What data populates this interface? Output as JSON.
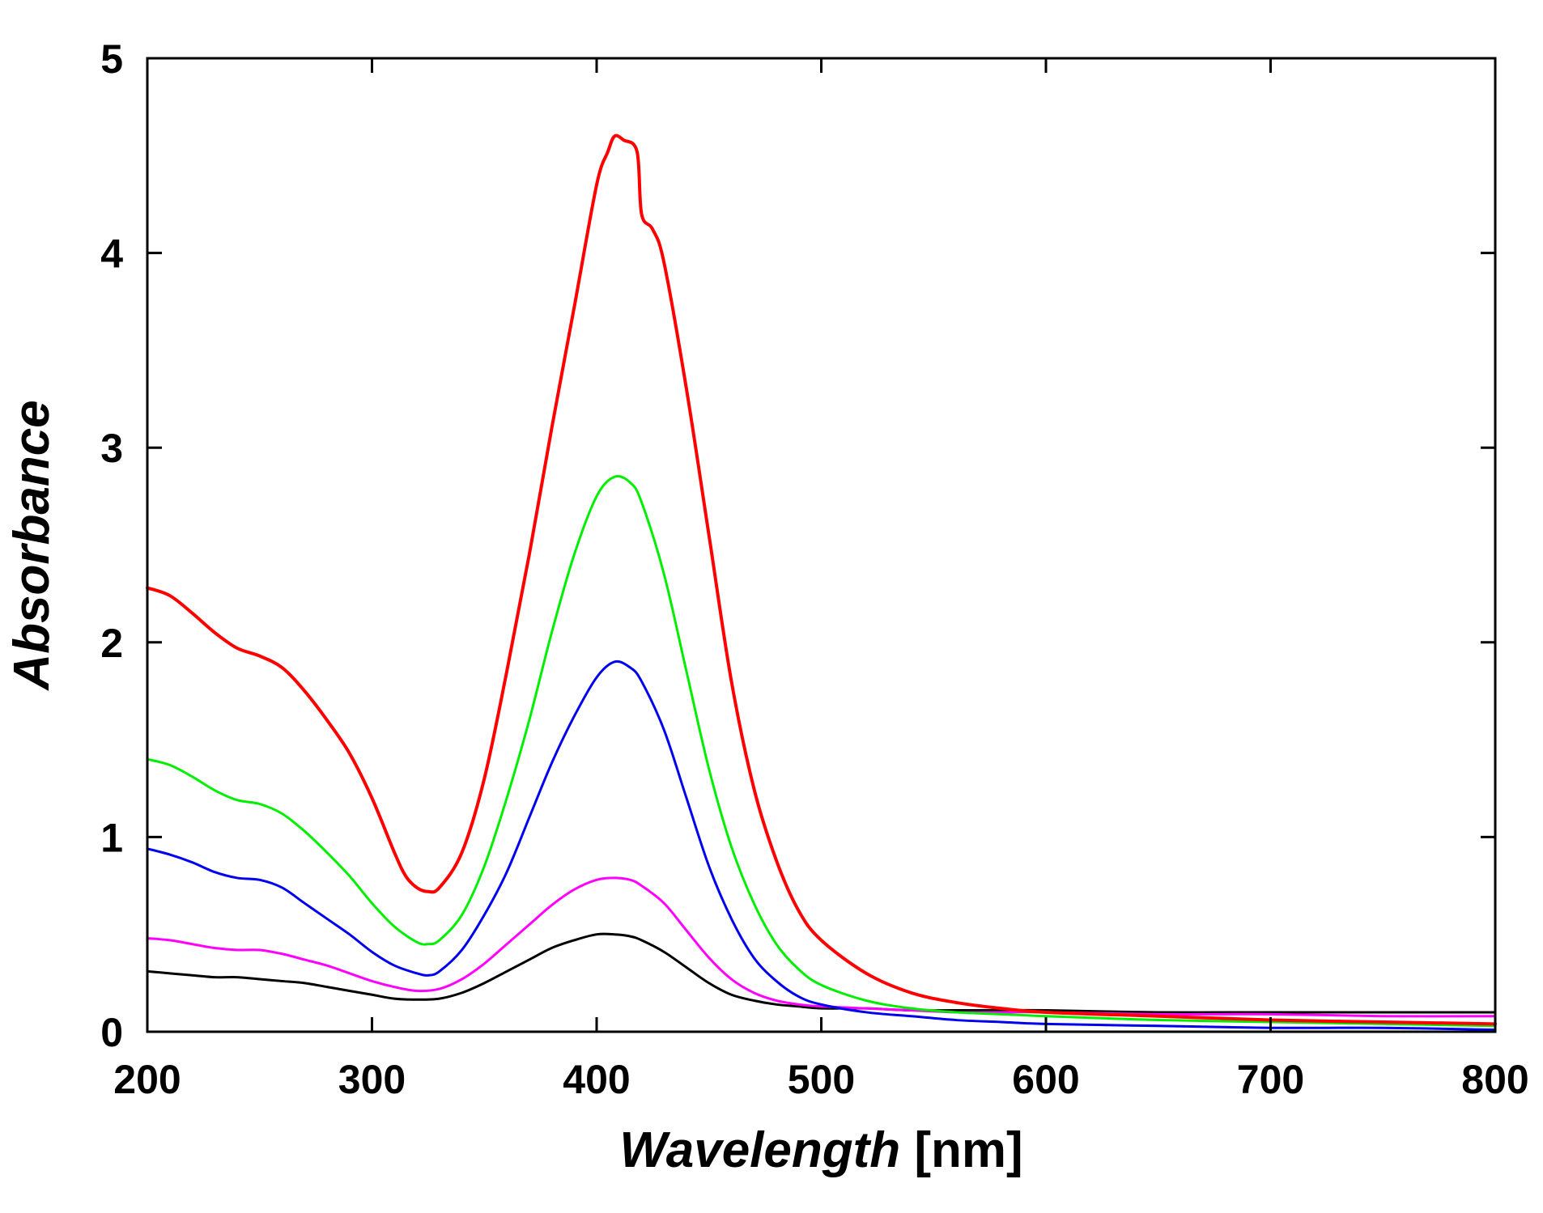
{
  "chart_data": {
    "type": "line",
    "title": "",
    "xlabel": "Wavelength",
    "xlabel_unit": "[nm]",
    "ylabel": "Absorbance",
    "xlim": [
      200,
      800
    ],
    "ylim": [
      0,
      5
    ],
    "x_ticks": [
      200,
      300,
      400,
      500,
      600,
      700,
      800
    ],
    "y_ticks": [
      0,
      1,
      2,
      3,
      4,
      5
    ],
    "grid": false,
    "legend": "none",
    "series": [
      {
        "name": "red",
        "color": "#ff0000",
        "points": [
          [
            200,
            2.28
          ],
          [
            210,
            2.24
          ],
          [
            220,
            2.15
          ],
          [
            230,
            2.05
          ],
          [
            240,
            1.97
          ],
          [
            250,
            1.93
          ],
          [
            260,
            1.87
          ],
          [
            270,
            1.75
          ],
          [
            280,
            1.6
          ],
          [
            290,
            1.43
          ],
          [
            300,
            1.2
          ],
          [
            310,
            0.92
          ],
          [
            315,
            0.8
          ],
          [
            320,
            0.74
          ],
          [
            325,
            0.72
          ],
          [
            330,
            0.74
          ],
          [
            340,
            0.92
          ],
          [
            350,
            1.3
          ],
          [
            360,
            1.85
          ],
          [
            370,
            2.45
          ],
          [
            380,
            3.1
          ],
          [
            390,
            3.72
          ],
          [
            400,
            4.35
          ],
          [
            405,
            4.52
          ],
          [
            408,
            4.6
          ],
          [
            412,
            4.58
          ],
          [
            418,
            4.52
          ],
          [
            420,
            4.2
          ],
          [
            425,
            4.12
          ],
          [
            430,
            3.95
          ],
          [
            440,
            3.3
          ],
          [
            450,
            2.55
          ],
          [
            460,
            1.8
          ],
          [
            470,
            1.25
          ],
          [
            480,
            0.88
          ],
          [
            490,
            0.62
          ],
          [
            500,
            0.47
          ],
          [
            520,
            0.3
          ],
          [
            540,
            0.2
          ],
          [
            560,
            0.15
          ],
          [
            580,
            0.12
          ],
          [
            600,
            0.1
          ],
          [
            650,
            0.08
          ],
          [
            700,
            0.06
          ],
          [
            750,
            0.05
          ],
          [
            800,
            0.04
          ]
        ]
      },
      {
        "name": "green",
        "color": "#00ee00",
        "points": [
          [
            200,
            1.4
          ],
          [
            210,
            1.37
          ],
          [
            220,
            1.31
          ],
          [
            230,
            1.24
          ],
          [
            240,
            1.19
          ],
          [
            250,
            1.17
          ],
          [
            260,
            1.12
          ],
          [
            270,
            1.03
          ],
          [
            280,
            0.92
          ],
          [
            290,
            0.8
          ],
          [
            300,
            0.66
          ],
          [
            310,
            0.54
          ],
          [
            320,
            0.46
          ],
          [
            325,
            0.45
          ],
          [
            330,
            0.47
          ],
          [
            340,
            0.6
          ],
          [
            350,
            0.85
          ],
          [
            360,
            1.2
          ],
          [
            370,
            1.6
          ],
          [
            380,
            2.05
          ],
          [
            390,
            2.45
          ],
          [
            400,
            2.75
          ],
          [
            408,
            2.85
          ],
          [
            415,
            2.82
          ],
          [
            420,
            2.72
          ],
          [
            430,
            2.35
          ],
          [
            440,
            1.85
          ],
          [
            450,
            1.35
          ],
          [
            460,
            0.95
          ],
          [
            470,
            0.66
          ],
          [
            480,
            0.45
          ],
          [
            490,
            0.32
          ],
          [
            500,
            0.24
          ],
          [
            520,
            0.16
          ],
          [
            540,
            0.12
          ],
          [
            560,
            0.1
          ],
          [
            580,
            0.09
          ],
          [
            600,
            0.08
          ],
          [
            650,
            0.06
          ],
          [
            700,
            0.05
          ],
          [
            750,
            0.04
          ],
          [
            800,
            0.03
          ]
        ]
      },
      {
        "name": "blue",
        "color": "#0000ee",
        "points": [
          [
            200,
            0.94
          ],
          [
            210,
            0.91
          ],
          [
            220,
            0.87
          ],
          [
            230,
            0.82
          ],
          [
            240,
            0.79
          ],
          [
            250,
            0.78
          ],
          [
            260,
            0.74
          ],
          [
            270,
            0.66
          ],
          [
            280,
            0.58
          ],
          [
            290,
            0.5
          ],
          [
            300,
            0.41
          ],
          [
            310,
            0.34
          ],
          [
            320,
            0.3
          ],
          [
            325,
            0.29
          ],
          [
            330,
            0.31
          ],
          [
            340,
            0.42
          ],
          [
            350,
            0.6
          ],
          [
            360,
            0.82
          ],
          [
            370,
            1.1
          ],
          [
            380,
            1.38
          ],
          [
            390,
            1.62
          ],
          [
            400,
            1.82
          ],
          [
            408,
            1.9
          ],
          [
            415,
            1.87
          ],
          [
            420,
            1.8
          ],
          [
            430,
            1.55
          ],
          [
            440,
            1.2
          ],
          [
            450,
            0.85
          ],
          [
            460,
            0.58
          ],
          [
            470,
            0.38
          ],
          [
            480,
            0.26
          ],
          [
            490,
            0.18
          ],
          [
            500,
            0.14
          ],
          [
            520,
            0.1
          ],
          [
            540,
            0.08
          ],
          [
            560,
            0.06
          ],
          [
            580,
            0.05
          ],
          [
            600,
            0.04
          ],
          [
            650,
            0.03
          ],
          [
            700,
            0.02
          ],
          [
            750,
            0.02
          ],
          [
            800,
            0.01
          ]
        ]
      },
      {
        "name": "magenta",
        "color": "#ff00ff",
        "points": [
          [
            200,
            0.48
          ],
          [
            210,
            0.47
          ],
          [
            220,
            0.45
          ],
          [
            230,
            0.43
          ],
          [
            240,
            0.42
          ],
          [
            250,
            0.42
          ],
          [
            260,
            0.4
          ],
          [
            270,
            0.37
          ],
          [
            280,
            0.34
          ],
          [
            290,
            0.3
          ],
          [
            300,
            0.26
          ],
          [
            310,
            0.23
          ],
          [
            320,
            0.21
          ],
          [
            330,
            0.22
          ],
          [
            340,
            0.27
          ],
          [
            350,
            0.35
          ],
          [
            360,
            0.45
          ],
          [
            370,
            0.55
          ],
          [
            380,
            0.65
          ],
          [
            390,
            0.73
          ],
          [
            400,
            0.78
          ],
          [
            408,
            0.79
          ],
          [
            415,
            0.78
          ],
          [
            420,
            0.75
          ],
          [
            430,
            0.66
          ],
          [
            440,
            0.52
          ],
          [
            450,
            0.38
          ],
          [
            460,
            0.27
          ],
          [
            470,
            0.2
          ],
          [
            480,
            0.16
          ],
          [
            490,
            0.14
          ],
          [
            500,
            0.13
          ],
          [
            520,
            0.12
          ],
          [
            540,
            0.11
          ],
          [
            560,
            0.1
          ],
          [
            580,
            0.1
          ],
          [
            600,
            0.1
          ],
          [
            650,
            0.09
          ],
          [
            700,
            0.09
          ],
          [
            750,
            0.08
          ],
          [
            800,
            0.08
          ]
        ]
      },
      {
        "name": "black",
        "color": "#000000",
        "points": [
          [
            200,
            0.31
          ],
          [
            210,
            0.3
          ],
          [
            220,
            0.29
          ],
          [
            230,
            0.28
          ],
          [
            240,
            0.28
          ],
          [
            250,
            0.27
          ],
          [
            260,
            0.26
          ],
          [
            270,
            0.25
          ],
          [
            280,
            0.23
          ],
          [
            290,
            0.21
          ],
          [
            300,
            0.19
          ],
          [
            310,
            0.17
          ],
          [
            320,
            0.165
          ],
          [
            330,
            0.17
          ],
          [
            340,
            0.2
          ],
          [
            350,
            0.25
          ],
          [
            360,
            0.31
          ],
          [
            370,
            0.37
          ],
          [
            380,
            0.43
          ],
          [
            390,
            0.47
          ],
          [
            400,
            0.5
          ],
          [
            408,
            0.5
          ],
          [
            415,
            0.49
          ],
          [
            420,
            0.47
          ],
          [
            430,
            0.41
          ],
          [
            440,
            0.33
          ],
          [
            450,
            0.25
          ],
          [
            460,
            0.19
          ],
          [
            470,
            0.16
          ],
          [
            480,
            0.14
          ],
          [
            490,
            0.13
          ],
          [
            500,
            0.12
          ],
          [
            520,
            0.12
          ],
          [
            540,
            0.11
          ],
          [
            560,
            0.11
          ],
          [
            580,
            0.11
          ],
          [
            600,
            0.11
          ],
          [
            650,
            0.1
          ],
          [
            700,
            0.1
          ],
          [
            750,
            0.1
          ],
          [
            800,
            0.1
          ]
        ]
      }
    ]
  }
}
